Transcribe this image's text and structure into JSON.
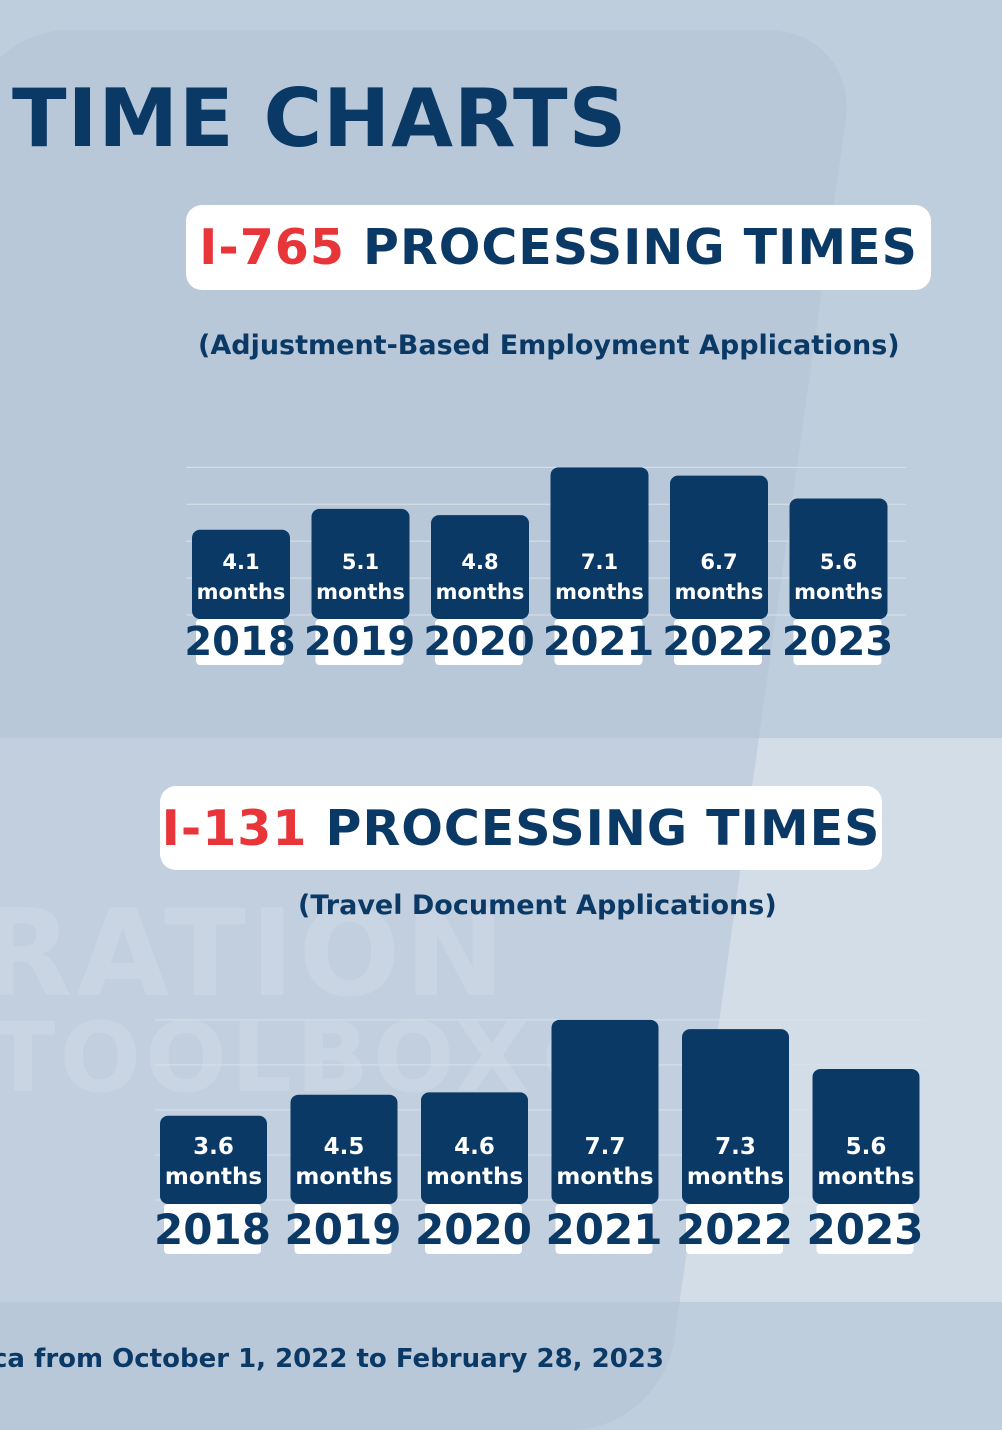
{
  "header": {
    "title": "TIME CHARTS"
  },
  "charts": {
    "i765": {
      "form": "I-765",
      "heading": "PROCESSING TIMES",
      "subtitle": "(Adjustment-Based Employment Applications)"
    },
    "i131": {
      "form": "I-131",
      "heading": "PROCESSING TIMES",
      "subtitle": "(Travel Document Applications)"
    }
  },
  "footer": {
    "text": "ca from October 1, 2022 to February 28, 2023"
  },
  "watermark": {
    "line1": "RATION",
    "line2": "TOOLBOX®"
  },
  "colors": {
    "bar": "#0b3966",
    "accent": "#e8353a",
    "label_bg": "#ffffff"
  },
  "chart_data": [
    {
      "type": "bar",
      "title": "I-765 PROCESSING TIMES",
      "subtitle": "(Adjustment-Based Employment Applications)",
      "categories": [
        "2018",
        "2019",
        "2020",
        "2021",
        "2022",
        "2023"
      ],
      "values": [
        4.1,
        5.1,
        4.8,
        7.1,
        6.7,
        5.6
      ],
      "unit": "months",
      "grid": true
    },
    {
      "type": "bar",
      "title": "I-131 PROCESSING TIMES",
      "subtitle": "(Travel Document Applications)",
      "categories": [
        "2018",
        "2019",
        "2020",
        "2021",
        "2022",
        "2023"
      ],
      "values": [
        3.6,
        4.5,
        4.6,
        7.7,
        7.3,
        5.6
      ],
      "unit": "months",
      "grid": true
    }
  ]
}
